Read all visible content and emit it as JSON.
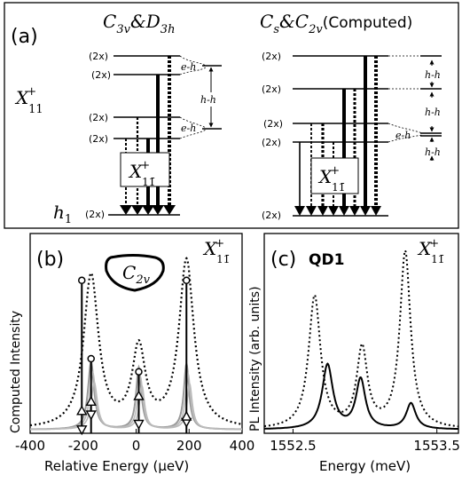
{
  "panel_a": {
    "label": "(a)",
    "left_title_a": "C",
    "left_title_a_sub": "3v",
    "left_title_amp": "&",
    "left_title_b": "D",
    "left_title_b_sub": "3h",
    "right_title_a": "C",
    "right_title_a_sub": "s",
    "right_title_amp": "&",
    "right_title_b": "C",
    "right_title_b_sub": "2v",
    "right_title_suffix": "(Computed)",
    "state_x11": "X",
    "state_x11_sup": "+",
    "state_x11_sub": "11",
    "state_h1": "h",
    "state_h1_sub": "1",
    "box_label": "X",
    "box_sup": "+",
    "box_sub": "11̄",
    "degeneracy": "(2x)",
    "eh": "e-h",
    "hh": "h-h"
  },
  "panel_b": {
    "label": "(b)",
    "shape_label": "C",
    "shape_sub": "2v",
    "state": "X",
    "state_sup": "+",
    "state_sub": "11̄",
    "ylabel": "Computed Intensity",
    "xlabel": "Relative Energy (μeV)",
    "xticks": [
      "-400",
      "-200",
      "0",
      "200",
      "400"
    ]
  },
  "panel_c": {
    "label": "(c)",
    "sample": "QD1",
    "state": "X",
    "state_sup": "+",
    "state_sub": "11̄",
    "ylabel": "PL Intensity (arb. units)",
    "xlabel": "Energy (meV)",
    "xticks": [
      "1552.5",
      "1553.5"
    ]
  },
  "chart_data": [
    {
      "type": "line",
      "title": "",
      "xlabel": "Relative Energy (μeV)",
      "ylabel": "Computed Intensity",
      "xlim": [
        -400,
        400
      ],
      "xticks": [
        -400,
        -200,
        0,
        200,
        400
      ],
      "series": [
        {
          "style": "dotted",
          "peaks_x": [
            -170,
            10,
            190
          ],
          "peaks_y": [
            0.82,
            0.42,
            0.9
          ]
        },
        {
          "style": "solid-gray",
          "peaks_x": [
            -170,
            10,
            190
          ],
          "peaks_y": [
            0.36,
            0.33,
            0.35
          ]
        }
      ],
      "sticks": [
        {
          "x": -205,
          "top": 0.82,
          "markers": [
            0.02,
            0.12
          ]
        },
        {
          "x": -170,
          "top": 0.4,
          "markers": [
            0.1,
            0.17
          ]
        },
        {
          "x": 10,
          "top": 0.33,
          "markers": [
            0.05,
            0.2
          ]
        },
        {
          "x": 190,
          "top": 0.82,
          "markers": [
            0.06,
            0.09
          ]
        }
      ]
    },
    {
      "type": "line",
      "title": "",
      "xlabel": "Energy (meV)",
      "ylabel": "PL Intensity (arb. units)",
      "xlim": [
        1552.3,
        1553.65
      ],
      "xticks": [
        1552.5,
        1553.5
      ],
      "series": [
        {
          "style": "dotted",
          "peaks_x": [
            1552.65,
            1552.98,
            1553.28
          ],
          "peaks_y": [
            0.72,
            0.43,
            0.96
          ]
        },
        {
          "style": "solid",
          "peaks_x": [
            1552.74,
            1552.97,
            1553.32
          ],
          "peaks_y": [
            0.35,
            0.27,
            0.14
          ]
        }
      ]
    }
  ]
}
